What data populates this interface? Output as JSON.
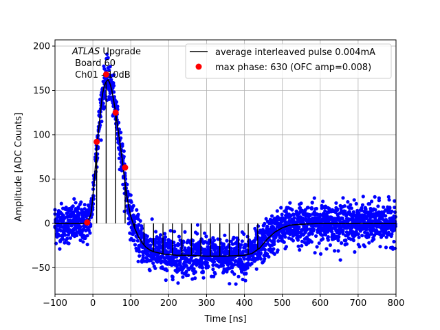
{
  "chart_data": {
    "type": "scatter",
    "title": "",
    "xlabel": "Time [ns]",
    "ylabel": "Amplitude [ADC Counts]",
    "xlim": [
      -100,
      800
    ],
    "ylim": [
      -80,
      207
    ],
    "xticks": [
      -100,
      0,
      100,
      200,
      300,
      400,
      500,
      600,
      700,
      800
    ],
    "yticks": [
      -50,
      0,
      50,
      100,
      150,
      200
    ],
    "grid": true,
    "legend_position": "top-right",
    "annotation": {
      "line1_italic": "ATLAS",
      "line1_rest": " Upgrade",
      "line2": " Board 60",
      "line3": " Ch01 - 10dB"
    },
    "colors": {
      "scatter": "#0000ff",
      "average": "#000000",
      "max_phase": "#ff0000",
      "grid": "#b0b0b0"
    },
    "series": [
      {
        "name": "average interleaved pulse 0.004mA",
        "kind": "line",
        "x": [
          -100,
          -40,
          -25,
          -15,
          -5,
          0,
          5,
          10,
          15,
          20,
          25,
          30,
          35,
          40,
          45,
          50,
          55,
          60,
          65,
          70,
          75,
          80,
          85,
          90,
          95,
          100,
          110,
          120,
          130,
          140,
          150,
          160,
          170,
          180,
          190,
          200,
          220,
          250,
          300,
          350,
          400,
          420,
          440,
          460,
          480,
          500,
          520,
          550,
          600,
          650,
          700,
          750,
          800
        ],
        "y": [
          0,
          0,
          0,
          1,
          10,
          30,
          55,
          85,
          105,
          125,
          145,
          155,
          160,
          162,
          158,
          150,
          138,
          125,
          110,
          95,
          80,
          63,
          45,
          30,
          18,
          8,
          -5,
          -15,
          -22,
          -27,
          -30,
          -32,
          -33,
          -34,
          -35,
          -35,
          -36,
          -36,
          -37,
          -37,
          -36,
          -34,
          -28,
          -18,
          -10,
          -5,
          -2,
          -1,
          0,
          0,
          0,
          0,
          0
        ]
      },
      {
        "name": "max phase: 630 (OFC amp=0.008)",
        "kind": "markers",
        "x": [
          -15,
          10,
          35,
          60,
          85
        ],
        "y": [
          1,
          92,
          168,
          125,
          63
        ]
      }
    ]
  }
}
